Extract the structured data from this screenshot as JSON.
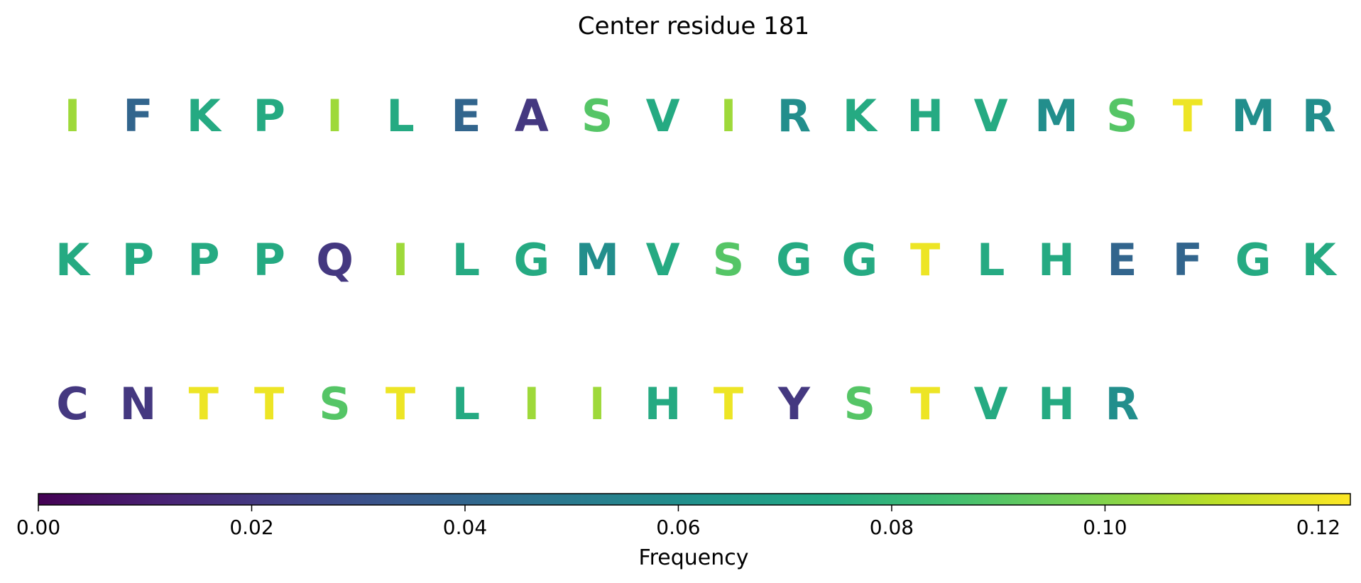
{
  "chart_data": {
    "type": "heatmap",
    "title": "Center residue 181",
    "layout": "sequence-grid",
    "columns_per_row": 20,
    "residues": [
      {
        "letter": "I",
        "value": 0.105
      },
      {
        "letter": "F",
        "value": 0.04
      },
      {
        "letter": "K",
        "value": 0.075
      },
      {
        "letter": "P",
        "value": 0.075
      },
      {
        "letter": "I",
        "value": 0.105
      },
      {
        "letter": "L",
        "value": 0.075
      },
      {
        "letter": "E",
        "value": 0.04
      },
      {
        "letter": "A",
        "value": 0.02
      },
      {
        "letter": "S",
        "value": 0.09
      },
      {
        "letter": "V",
        "value": 0.075
      },
      {
        "letter": "I",
        "value": 0.105
      },
      {
        "letter": "R",
        "value": 0.06
      },
      {
        "letter": "K",
        "value": 0.075
      },
      {
        "letter": "H",
        "value": 0.075
      },
      {
        "letter": "V",
        "value": 0.075
      },
      {
        "letter": "M",
        "value": 0.06
      },
      {
        "letter": "S",
        "value": 0.09
      },
      {
        "letter": "T",
        "value": 0.12
      },
      {
        "letter": "M",
        "value": 0.06
      },
      {
        "letter": "R",
        "value": 0.06
      },
      {
        "letter": "K",
        "value": 0.075
      },
      {
        "letter": "P",
        "value": 0.075
      },
      {
        "letter": "P",
        "value": 0.075
      },
      {
        "letter": "P",
        "value": 0.075
      },
      {
        "letter": "Q",
        "value": 0.02
      },
      {
        "letter": "I",
        "value": 0.105
      },
      {
        "letter": "L",
        "value": 0.075
      },
      {
        "letter": "G",
        "value": 0.075
      },
      {
        "letter": "M",
        "value": 0.06
      },
      {
        "letter": "V",
        "value": 0.075
      },
      {
        "letter": "S",
        "value": 0.09
      },
      {
        "letter": "G",
        "value": 0.075
      },
      {
        "letter": "G",
        "value": 0.075
      },
      {
        "letter": "T",
        "value": 0.12
      },
      {
        "letter": "L",
        "value": 0.075
      },
      {
        "letter": "H",
        "value": 0.075
      },
      {
        "letter": "E",
        "value": 0.04
      },
      {
        "letter": "F",
        "value": 0.04
      },
      {
        "letter": "G",
        "value": 0.075
      },
      {
        "letter": "K",
        "value": 0.075
      },
      {
        "letter": "C",
        "value": 0.02
      },
      {
        "letter": "N",
        "value": 0.02
      },
      {
        "letter": "T",
        "value": 0.12
      },
      {
        "letter": "T",
        "value": 0.12
      },
      {
        "letter": "S",
        "value": 0.09
      },
      {
        "letter": "T",
        "value": 0.12
      },
      {
        "letter": "L",
        "value": 0.075
      },
      {
        "letter": "I",
        "value": 0.105
      },
      {
        "letter": "I",
        "value": 0.105
      },
      {
        "letter": "H",
        "value": 0.075
      },
      {
        "letter": "T",
        "value": 0.12
      },
      {
        "letter": "Y",
        "value": 0.02
      },
      {
        "letter": "S",
        "value": 0.09
      },
      {
        "letter": "T",
        "value": 0.12
      },
      {
        "letter": "V",
        "value": 0.075
      },
      {
        "letter": "H",
        "value": 0.075
      },
      {
        "letter": "R",
        "value": 0.06
      }
    ],
    "colorbar": {
      "colormap": "viridis",
      "range": [
        0,
        0.123
      ],
      "ticks": [
        0.0,
        0.02,
        0.04,
        0.06,
        0.08,
        0.1,
        0.12
      ],
      "tick_labels": [
        "0.00",
        "0.02",
        "0.04",
        "0.06",
        "0.08",
        "0.10",
        "0.12"
      ],
      "label": "Frequency",
      "orientation": "horizontal",
      "placement": "bottom"
    }
  }
}
